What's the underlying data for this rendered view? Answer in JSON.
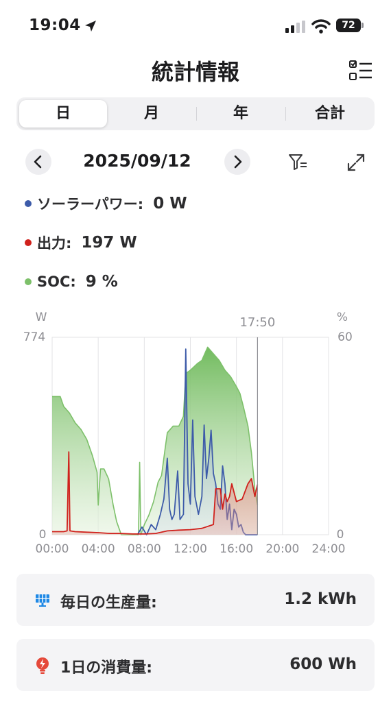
{
  "status_bar": {
    "time": "19:04",
    "battery": "72"
  },
  "header": {
    "title": "統計情報"
  },
  "tabs": [
    {
      "label": "日",
      "active": true
    },
    {
      "label": "月",
      "active": false
    },
    {
      "label": "年",
      "active": false
    },
    {
      "label": "合計",
      "active": false
    }
  ],
  "date_nav": {
    "date": "2025/09/12"
  },
  "legend": [
    {
      "label": "ソーラーパワー:",
      "value": "0 W",
      "color": "#3d5ba9"
    },
    {
      "label": "出力:",
      "value": "197 W",
      "color": "#d0211c"
    },
    {
      "label": "SOC:",
      "value": "9 %",
      "color": "#7dc06a"
    }
  ],
  "chart_data": {
    "type": "area",
    "x_unit": "hours",
    "x_range": [
      0,
      24
    ],
    "x_ticks": [
      "00:00",
      "04:00",
      "08:00",
      "12:00",
      "16:00",
      "20:00",
      "24:00"
    ],
    "y_left": {
      "unit": "W",
      "max_label": "774",
      "min_label": "0",
      "range": [
        0,
        774
      ]
    },
    "y_right": {
      "unit": "%",
      "max_label": "60",
      "min_label": "0",
      "range": [
        0,
        60
      ]
    },
    "cursor": {
      "label": "17:50",
      "x": 17.83
    },
    "series": [
      {
        "name": "SOC",
        "color": "#7dc06a",
        "axis": "right",
        "points": [
          [
            0,
            42
          ],
          [
            0.7,
            42
          ],
          [
            1.0,
            39
          ],
          [
            1.5,
            37
          ],
          [
            2.0,
            34
          ],
          [
            2.5,
            32
          ],
          [
            3.0,
            29
          ],
          [
            3.5,
            24
          ],
          [
            3.9,
            19
          ],
          [
            4.0,
            9
          ],
          [
            4.2,
            20
          ],
          [
            4.5,
            20
          ],
          [
            4.9,
            17
          ],
          [
            5.3,
            9
          ],
          [
            5.6,
            4
          ],
          [
            5.9,
            1
          ],
          [
            6.0,
            0
          ],
          [
            7.5,
            0
          ],
          [
            7.6,
            22
          ],
          [
            7.7,
            0
          ],
          [
            8.0,
            3
          ],
          [
            8.4,
            6
          ],
          [
            8.8,
            10
          ],
          [
            9.2,
            16
          ],
          [
            9.5,
            18
          ],
          [
            9.8,
            26
          ],
          [
            10.0,
            31
          ],
          [
            10.5,
            33
          ],
          [
            11.0,
            33
          ],
          [
            11.4,
            36
          ],
          [
            11.6,
            49
          ],
          [
            12.0,
            50
          ],
          [
            12.6,
            52
          ],
          [
            13.0,
            53
          ],
          [
            13.5,
            57
          ],
          [
            14.0,
            55
          ],
          [
            14.5,
            53
          ],
          [
            15.0,
            50
          ],
          [
            15.5,
            48
          ],
          [
            16.0,
            45
          ],
          [
            16.3,
            43
          ],
          [
            16.6,
            39
          ],
          [
            17.0,
            33
          ],
          [
            17.3,
            25
          ],
          [
            17.6,
            14
          ],
          [
            17.83,
            9
          ]
        ]
      },
      {
        "name": "ソーラーパワー",
        "color": "#3d5ba9",
        "axis": "left",
        "points": [
          [
            7.4,
            0
          ],
          [
            7.8,
            30
          ],
          [
            8.2,
            0
          ],
          [
            8.6,
            40
          ],
          [
            9.0,
            20
          ],
          [
            9.4,
            80
          ],
          [
            9.7,
            140
          ],
          [
            10.0,
            300
          ],
          [
            10.2,
            100
          ],
          [
            10.4,
            60
          ],
          [
            10.6,
            80
          ],
          [
            10.9,
            250
          ],
          [
            11.1,
            60
          ],
          [
            11.4,
            80
          ],
          [
            11.6,
            728
          ],
          [
            11.8,
            200
          ],
          [
            12.0,
            120
          ],
          [
            12.2,
            450
          ],
          [
            12.4,
            150
          ],
          [
            12.7,
            80
          ],
          [
            13.0,
            150
          ],
          [
            13.2,
            430
          ],
          [
            13.4,
            220
          ],
          [
            13.6,
            300
          ],
          [
            13.8,
            410
          ],
          [
            14.0,
            240
          ],
          [
            14.2,
            200
          ],
          [
            14.4,
            120
          ],
          [
            14.6,
            100
          ],
          [
            14.8,
            270
          ],
          [
            15.0,
            200
          ],
          [
            15.2,
            60
          ],
          [
            15.4,
            120
          ],
          [
            15.6,
            20
          ],
          [
            15.8,
            100
          ],
          [
            16.0,
            80
          ],
          [
            16.2,
            30
          ],
          [
            16.4,
            40
          ],
          [
            16.6,
            10
          ],
          [
            16.8,
            0
          ],
          [
            17.83,
            0
          ]
        ]
      },
      {
        "name": "出力",
        "color": "#d0211c",
        "axis": "left",
        "points": [
          [
            0,
            12
          ],
          [
            1.0,
            12
          ],
          [
            1.3,
            15
          ],
          [
            1.45,
            325
          ],
          [
            1.55,
            15
          ],
          [
            2.0,
            12
          ],
          [
            3.0,
            10
          ],
          [
            4.0,
            8
          ],
          [
            5.0,
            5
          ],
          [
            6.0,
            5
          ],
          [
            7.0,
            3
          ],
          [
            8.0,
            3
          ],
          [
            9.0,
            5
          ],
          [
            10.0,
            15
          ],
          [
            11.0,
            18
          ],
          [
            12.0,
            20
          ],
          [
            13.0,
            25
          ],
          [
            14.0,
            40
          ],
          [
            14.2,
            180
          ],
          [
            14.6,
            180
          ],
          [
            14.8,
            100
          ],
          [
            15.0,
            160
          ],
          [
            15.2,
            130
          ],
          [
            15.4,
            150
          ],
          [
            15.6,
            200
          ],
          [
            16.0,
            130
          ],
          [
            16.5,
            140
          ],
          [
            17.0,
            200
          ],
          [
            17.3,
            220
          ],
          [
            17.6,
            150
          ],
          [
            17.83,
            197
          ]
        ]
      }
    ]
  },
  "summary": [
    {
      "label": "毎日の生産量:",
      "value": "1.2 kWh",
      "icon": "solar-panel-icon",
      "color": "#1e88e5"
    },
    {
      "label": "1日の消費量:",
      "value": "600 Wh",
      "icon": "bulb-icon",
      "color": "#e5493a"
    }
  ]
}
